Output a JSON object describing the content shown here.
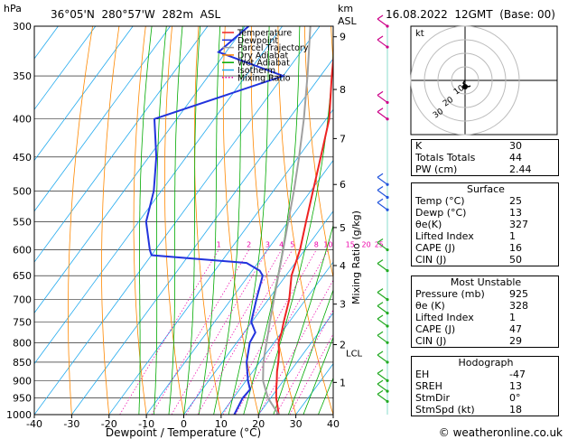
{
  "header": {
    "pressure_unit": "hPa",
    "location": "36°05'N  280°57'W  282m  ASL",
    "km_label": "km",
    "asl_label": "ASL",
    "datetime": "16.08.2022  12GMT  (Base: 00)"
  },
  "chart_data": {
    "type": "line",
    "title": "",
    "xlabel": "Dewpoint / Temperature (°C)",
    "ylabel_right": "Mixing Ratio (g/kg)",
    "xlim": [
      -40,
      40
    ],
    "ylim": [
      1000,
      300
    ],
    "y_scale": "log (inverted)",
    "skew": "skew-T log-P",
    "x_ticks": [
      "-40",
      "-30",
      "-20",
      "-10",
      "0",
      "10",
      "20",
      "30",
      "40"
    ],
    "pressure_ticks": [
      "300",
      "350",
      "400",
      "450",
      "500",
      "550",
      "600",
      "650",
      "700",
      "750",
      "800",
      "850",
      "900",
      "950",
      "1000"
    ],
    "height_ticks": [
      {
        "label": "9",
        "p": 310
      },
      {
        "label": "8",
        "p": 365
      },
      {
        "label": "7",
        "p": 425
      },
      {
        "label": "6",
        "p": 490
      },
      {
        "label": "5",
        "p": 560
      },
      {
        "label": "4",
        "p": 630
      },
      {
        "label": "3",
        "p": 710
      },
      {
        "label": "2",
        "p": 805
      },
      {
        "label": "1",
        "p": 905
      }
    ],
    "lcl_label": "LCL",
    "lcl_p": 825,
    "mixing_ratio_labels": [
      "1",
      "2",
      "3",
      "4",
      "5",
      "8",
      "10",
      "15",
      "20",
      "25"
    ],
    "mixing_ratio_values": [
      1,
      2,
      3,
      4,
      5,
      8,
      10,
      15,
      20,
      25
    ],
    "legend": [
      "Temperature",
      "Dewpoint",
      "Parcel Trajectory",
      "Dry Adiabat",
      "Wet Adiabat",
      "Isotherm",
      "Mixing Ratio"
    ],
    "colors": {
      "temperature": "#ee2222",
      "dewpoint": "#2233dd",
      "parcel": "#a0a0a0",
      "dry_adiabat": "#ff8800",
      "wet_adiabat": "#00aa00",
      "isotherm": "#22aaee",
      "mixing_ratio": "#ee00aa"
    },
    "series": [
      {
        "name": "Temperature",
        "points": [
          {
            "p": 1000,
            "t": 25.4
          },
          {
            "p": 975,
            "t": 23.5
          },
          {
            "p": 950,
            "t": 21.5
          },
          {
            "p": 925,
            "t": 19.8
          },
          {
            "p": 900,
            "t": 18.2
          },
          {
            "p": 875,
            "t": 16.5
          },
          {
            "p": 850,
            "t": 15.0
          },
          {
            "p": 825,
            "t": 13.3
          },
          {
            "p": 800,
            "t": 11.2
          },
          {
            "p": 775,
            "t": 10.0
          },
          {
            "p": 750,
            "t": 8.5
          },
          {
            "p": 700,
            "t": 5.6
          },
          {
            "p": 650,
            "t": 1.5
          },
          {
            "p": 600,
            "t": -1.3
          },
          {
            "p": 550,
            "t": -5.2
          },
          {
            "p": 500,
            "t": -9.4
          },
          {
            "p": 450,
            "t": -14.0
          },
          {
            "p": 400,
            "t": -19.2
          },
          {
            "p": 350,
            "t": -27.0
          },
          {
            "p": 300,
            "t": -35.5
          }
        ]
      },
      {
        "name": "Dewpoint",
        "points": [
          {
            "p": 1000,
            "t": 13.5
          },
          {
            "p": 950,
            "t": 12.5
          },
          {
            "p": 925,
            "t": 12.8
          },
          {
            "p": 900,
            "t": 10.5
          },
          {
            "p": 850,
            "t": 6.5
          },
          {
            "p": 800,
            "t": 3.5
          },
          {
            "p": 775,
            "t": 3.0
          },
          {
            "p": 750,
            "t": -0.2
          },
          {
            "p": 700,
            "t": -3.2
          },
          {
            "p": 650,
            "t": -6.2
          },
          {
            "p": 640,
            "t": -8.0
          },
          {
            "p": 625,
            "t": -13.0
          },
          {
            "p": 610,
            "t": -40.0
          },
          {
            "p": 600,
            "t": -41.5
          },
          {
            "p": 550,
            "t": -48.0
          },
          {
            "p": 500,
            "t": -52.0
          },
          {
            "p": 450,
            "t": -58.0
          },
          {
            "p": 400,
            "t": -66.0
          },
          {
            "p": 350,
            "t": -40.0
          },
          {
            "p": 325,
            "t": -62.0
          },
          {
            "p": 300,
            "t": -59.0
          }
        ]
      },
      {
        "name": "Parcel Trajectory",
        "points": [
          {
            "p": 1000,
            "t": 25.4
          },
          {
            "p": 950,
            "t": 19.3
          },
          {
            "p": 900,
            "t": 14.5
          },
          {
            "p": 850,
            "t": 11.0
          },
          {
            "p": 825,
            "t": 9.5
          },
          {
            "p": 800,
            "t": 8.0
          },
          {
            "p": 750,
            "t": 4.8
          },
          {
            "p": 700,
            "t": 1.5
          },
          {
            "p": 650,
            "t": -2.0
          },
          {
            "p": 600,
            "t": -5.8
          },
          {
            "p": 550,
            "t": -10.0
          },
          {
            "p": 500,
            "t": -14.5
          },
          {
            "p": 450,
            "t": -19.8
          },
          {
            "p": 400,
            "t": -26.0
          },
          {
            "p": 350,
            "t": -33.5
          },
          {
            "p": 300,
            "t": -42.5
          }
        ]
      }
    ]
  },
  "hodograph": {
    "label": "kt",
    "ring_labels": [
      "10",
      "20",
      "30"
    ]
  },
  "indices": {
    "rows": [
      {
        "label": "K",
        "value": "30"
      },
      {
        "label": "Totals Totals",
        "value": "44"
      },
      {
        "label": "PW (cm)",
        "value": "2.44"
      }
    ]
  },
  "surface": {
    "title": "Surface",
    "rows": [
      {
        "label": "Temp (°C)",
        "value": "25"
      },
      {
        "label": "Dewp (°C)",
        "value": "13"
      },
      {
        "label": "θe(K)",
        "value": "327"
      },
      {
        "label": "Lifted Index",
        "value": "1"
      },
      {
        "label": "CAPE (J)",
        "value": "16"
      },
      {
        "label": "CIN (J)",
        "value": "50"
      }
    ]
  },
  "most_unstable": {
    "title": "Most Unstable",
    "rows": [
      {
        "label": "Pressure (mb)",
        "value": "925"
      },
      {
        "label": "θe (K)",
        "value": "328"
      },
      {
        "label": "Lifted Index",
        "value": "1"
      },
      {
        "label": "CAPE (J)",
        "value": "47"
      },
      {
        "label": "CIN (J)",
        "value": "29"
      }
    ]
  },
  "hodograph_table": {
    "title": "Hodograph",
    "rows": [
      {
        "label": "EH",
        "value": "-47"
      },
      {
        "label": "SREH",
        "value": "13"
      },
      {
        "label": "StmDir",
        "value": "0°"
      },
      {
        "label": "StmSpd (kt)",
        "value": "18"
      }
    ]
  },
  "footer": {
    "copyright": "© weatheronline.co.uk"
  }
}
